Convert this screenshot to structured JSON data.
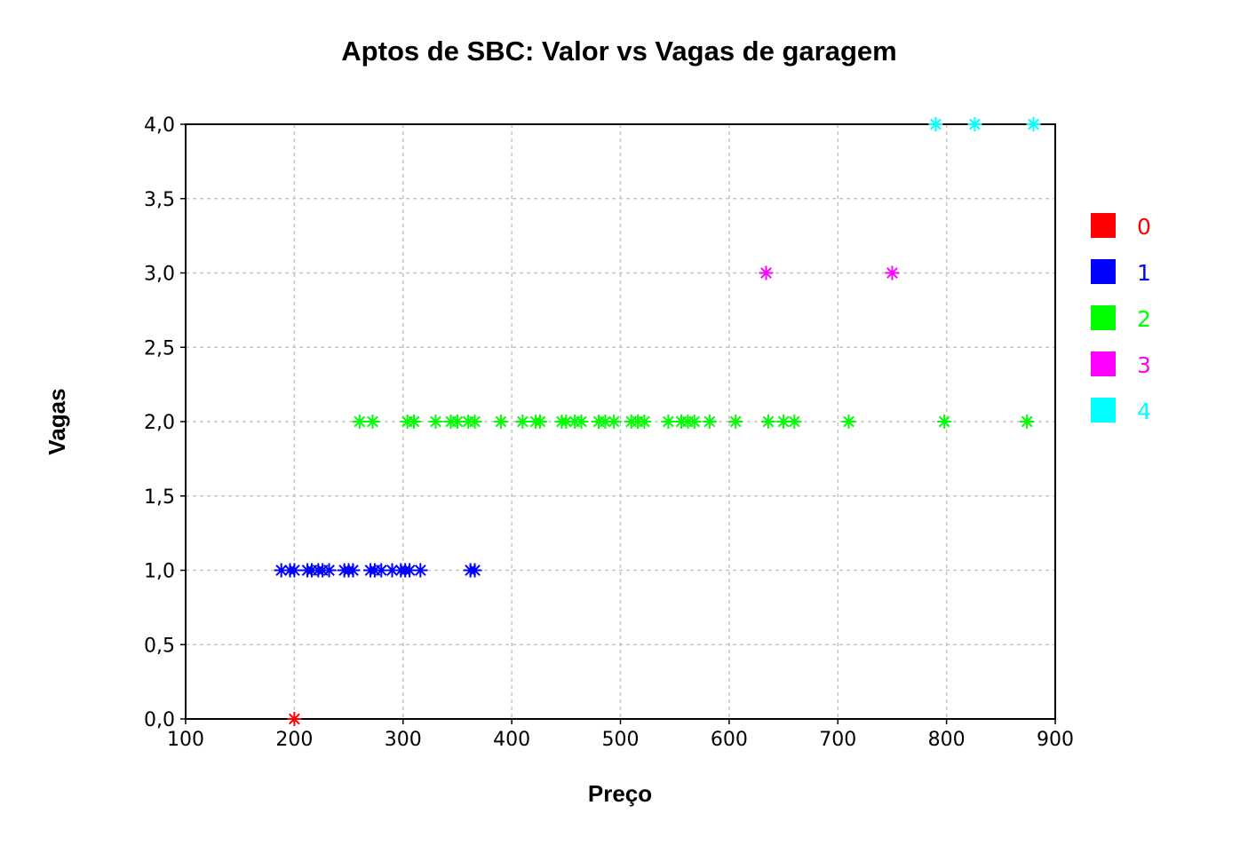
{
  "chart_data": {
    "type": "scatter",
    "title": "Aptos de SBC: Valor vs Vagas de garagem",
    "xlabel": "Preço",
    "ylabel": "Vagas",
    "xlim": [
      100,
      900
    ],
    "ylim": [
      0,
      4
    ],
    "x_ticks": [
      100,
      200,
      300,
      400,
      500,
      600,
      700,
      800,
      900
    ],
    "y_ticks": [
      "0,0",
      "0,5",
      "1,0",
      "1,5",
      "2,0",
      "2,5",
      "3,0",
      "3,5",
      "4,0"
    ],
    "y_tick_values": [
      0,
      0.5,
      1,
      1.5,
      2,
      2.5,
      3,
      3.5,
      4
    ],
    "grid": true,
    "legend_position": "right",
    "marker": "asterisk",
    "series": [
      {
        "name": "0",
        "color": "#ff0000",
        "x": [
          200
        ],
        "y": [
          0
        ]
      },
      {
        "name": "1",
        "color": "#0000ff",
        "x": [
          188,
          196,
          200,
          212,
          216,
          222,
          226,
          232,
          246,
          250,
          254,
          270,
          274,
          280,
          290,
          298,
          302,
          306,
          316,
          362,
          366
        ],
        "y": [
          1,
          1,
          1,
          1,
          1,
          1,
          1,
          1,
          1,
          1,
          1,
          1,
          1,
          1,
          1,
          1,
          1,
          1,
          1,
          1,
          1
        ]
      },
      {
        "name": "2",
        "color": "#00ff00",
        "x": [
          260,
          272,
          304,
          310,
          330,
          344,
          350,
          360,
          366,
          390,
          410,
          422,
          426,
          446,
          450,
          458,
          464,
          480,
          486,
          494,
          510,
          516,
          522,
          544,
          556,
          562,
          568,
          582,
          606,
          636,
          650,
          660,
          710,
          798,
          874
        ],
        "y": [
          2,
          2,
          2,
          2,
          2,
          2,
          2,
          2,
          2,
          2,
          2,
          2,
          2,
          2,
          2,
          2,
          2,
          2,
          2,
          2,
          2,
          2,
          2,
          2,
          2,
          2,
          2,
          2,
          2,
          2,
          2,
          2,
          2,
          2,
          2
        ]
      },
      {
        "name": "3",
        "color": "#ff00ff",
        "x": [
          634,
          750
        ],
        "y": [
          3,
          3
        ]
      },
      {
        "name": "4",
        "color": "#00ffff",
        "x": [
          790,
          826,
          880
        ],
        "y": [
          4,
          4,
          4
        ]
      }
    ]
  }
}
